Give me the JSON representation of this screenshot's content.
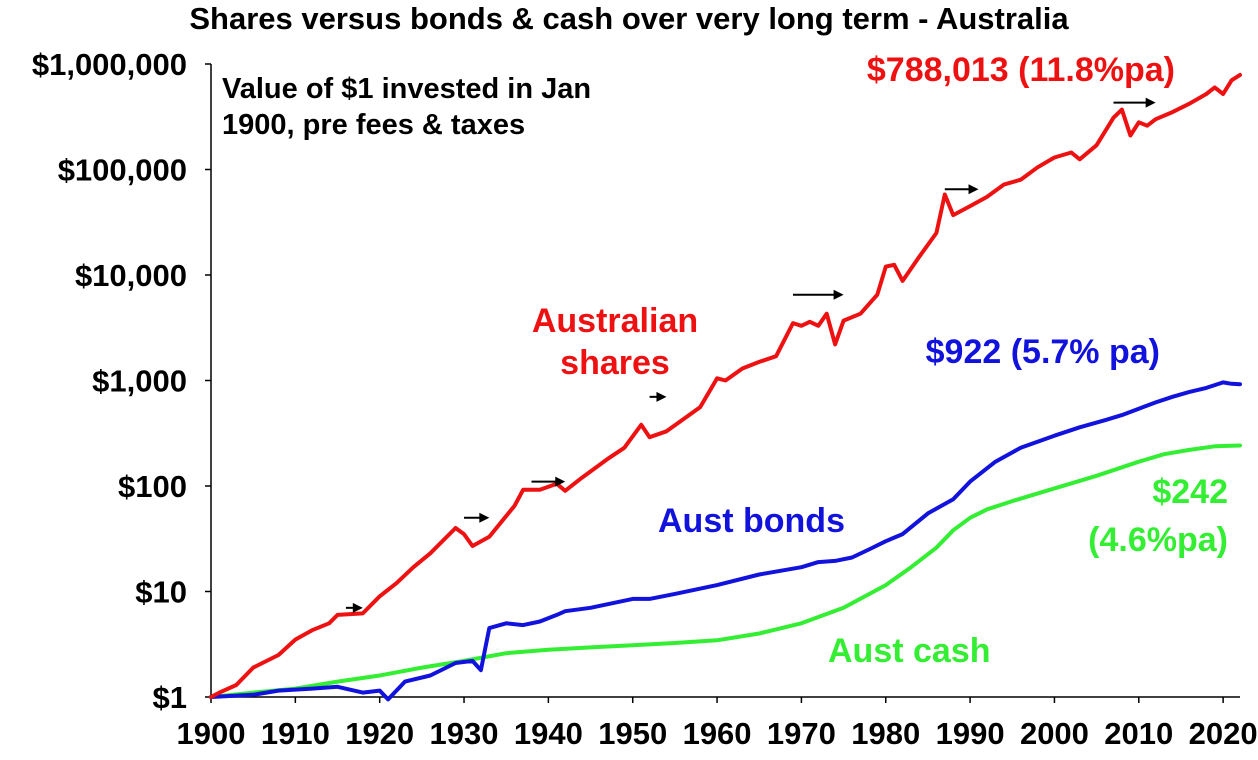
{
  "chart_data": {
    "type": "line",
    "title": "Shares versus bonds & cash over very long term - Australia",
    "y_scale": "log",
    "ylim": [
      1,
      1000000
    ],
    "xlim": [
      1900,
      2022
    ],
    "y_ticks": [
      {
        "value": 1,
        "label": "$1"
      },
      {
        "value": 10,
        "label": "$10"
      },
      {
        "value": 100,
        "label": "$100"
      },
      {
        "value": 1000,
        "label": "$1,000"
      },
      {
        "value": 10000,
        "label": "$10,000"
      },
      {
        "value": 100000,
        "label": "$100,000"
      },
      {
        "value": 1000000,
        "label": "$1,000,000"
      }
    ],
    "x_ticks": [
      {
        "value": 1900,
        "label": "1900"
      },
      {
        "value": 1910,
        "label": "1910"
      },
      {
        "value": 1920,
        "label": "1920"
      },
      {
        "value": 1930,
        "label": "1930"
      },
      {
        "value": 1940,
        "label": "1940"
      },
      {
        "value": 1950,
        "label": "1950"
      },
      {
        "value": 1960,
        "label": "1960"
      },
      {
        "value": 1970,
        "label": "1970"
      },
      {
        "value": 1980,
        "label": "1980"
      },
      {
        "value": 1990,
        "label": "1990"
      },
      {
        "value": 2000,
        "label": "2000"
      },
      {
        "value": 2010,
        "label": "2010"
      },
      {
        "value": 2020,
        "label": "2020"
      }
    ],
    "note": [
      "Value of $1 invested in Jan",
      "1900, pre fees & taxes"
    ],
    "series": [
      {
        "name": "Australian shares",
        "color": "#ee1111",
        "label_lines": [
          "Australian",
          "shares"
        ],
        "end_label": [
          "$788,013 (11.8%pa)"
        ],
        "points": [
          [
            1900,
            1.0
          ],
          [
            1901,
            1.1
          ],
          [
            1903,
            1.3
          ],
          [
            1905,
            1.9
          ],
          [
            1908,
            2.5
          ],
          [
            1910,
            3.5
          ],
          [
            1912,
            4.3
          ],
          [
            1914,
            5.0
          ],
          [
            1915,
            6.0
          ],
          [
            1918,
            6.2
          ],
          [
            1920,
            9.0
          ],
          [
            1922,
            12
          ],
          [
            1924,
            17
          ],
          [
            1926,
            23
          ],
          [
            1929,
            40
          ],
          [
            1930,
            35
          ],
          [
            1931,
            27
          ],
          [
            1933,
            33
          ],
          [
            1936,
            65
          ],
          [
            1937,
            92
          ],
          [
            1939,
            92
          ],
          [
            1941,
            105
          ],
          [
            1942,
            90
          ],
          [
            1944,
            120
          ],
          [
            1947,
            180
          ],
          [
            1949,
            230
          ],
          [
            1951,
            380
          ],
          [
            1952,
            290
          ],
          [
            1954,
            330
          ],
          [
            1956,
            430
          ],
          [
            1958,
            560
          ],
          [
            1960,
            1050
          ],
          [
            1961,
            1000
          ],
          [
            1963,
            1300
          ],
          [
            1965,
            1500
          ],
          [
            1967,
            1700
          ],
          [
            1969,
            3500
          ],
          [
            1970,
            3300
          ],
          [
            1971,
            3600
          ],
          [
            1972,
            3300
          ],
          [
            1973,
            4300
          ],
          [
            1974,
            2200
          ],
          [
            1975,
            3700
          ],
          [
            1977,
            4300
          ],
          [
            1979,
            6500
          ],
          [
            1980,
            12000
          ],
          [
            1981,
            12500
          ],
          [
            1982,
            8800
          ],
          [
            1984,
            15000
          ],
          [
            1986,
            25000
          ],
          [
            1987,
            58000
          ],
          [
            1988,
            37000
          ],
          [
            1990,
            45000
          ],
          [
            1992,
            55000
          ],
          [
            1994,
            72000
          ],
          [
            1996,
            80000
          ],
          [
            1998,
            105000
          ],
          [
            2000,
            130000
          ],
          [
            2002,
            145000
          ],
          [
            2003,
            125000
          ],
          [
            2005,
            170000
          ],
          [
            2007,
            310000
          ],
          [
            2008,
            370000
          ],
          [
            2009,
            210000
          ],
          [
            2010,
            280000
          ],
          [
            2011,
            260000
          ],
          [
            2012,
            300000
          ],
          [
            2014,
            350000
          ],
          [
            2016,
            420000
          ],
          [
            2018,
            520000
          ],
          [
            2019,
            600000
          ],
          [
            2020,
            520000
          ],
          [
            2021,
            700000
          ],
          [
            2022,
            788013
          ]
        ]
      },
      {
        "name": "Aust bonds",
        "color": "#1212dd",
        "label_lines": [
          "Aust bonds"
        ],
        "end_label": [
          "$922 (5.7% pa)"
        ],
        "points": [
          [
            1900,
            1.0
          ],
          [
            1905,
            1.05
          ],
          [
            1908,
            1.15
          ],
          [
            1912,
            1.2
          ],
          [
            1915,
            1.25
          ],
          [
            1918,
            1.1
          ],
          [
            1920,
            1.15
          ],
          [
            1921,
            0.95
          ],
          [
            1923,
            1.4
          ],
          [
            1926,
            1.6
          ],
          [
            1929,
            2.1
          ],
          [
            1931,
            2.2
          ],
          [
            1932,
            1.8
          ],
          [
            1933,
            4.5
          ],
          [
            1935,
            5.0
          ],
          [
            1937,
            4.8
          ],
          [
            1939,
            5.2
          ],
          [
            1941,
            6.0
          ],
          [
            1942,
            6.5
          ],
          [
            1945,
            7.0
          ],
          [
            1950,
            8.5
          ],
          [
            1952,
            8.5
          ],
          [
            1955,
            9.5
          ],
          [
            1960,
            11.5
          ],
          [
            1965,
            14.5
          ],
          [
            1970,
            17
          ],
          [
            1972,
            19
          ],
          [
            1974,
            19.5
          ],
          [
            1976,
            21
          ],
          [
            1978,
            25
          ],
          [
            1980,
            30
          ],
          [
            1982,
            35
          ],
          [
            1985,
            55
          ],
          [
            1988,
            75
          ],
          [
            1990,
            110
          ],
          [
            1993,
            170
          ],
          [
            1996,
            230
          ],
          [
            2000,
            300
          ],
          [
            2003,
            360
          ],
          [
            2006,
            420
          ],
          [
            2008,
            470
          ],
          [
            2010,
            540
          ],
          [
            2012,
            620
          ],
          [
            2014,
            700
          ],
          [
            2016,
            780
          ],
          [
            2018,
            850
          ],
          [
            2020,
            960
          ],
          [
            2021,
            930
          ],
          [
            2022,
            922
          ]
        ]
      },
      {
        "name": "Aust cash",
        "color": "#33ee33",
        "label_lines": [
          "Aust cash"
        ],
        "end_label": [
          "$242",
          "(4.6%pa)"
        ],
        "points": [
          [
            1900,
            1.0
          ],
          [
            1905,
            1.1
          ],
          [
            1910,
            1.2
          ],
          [
            1915,
            1.4
          ],
          [
            1920,
            1.6
          ],
          [
            1925,
            1.9
          ],
          [
            1930,
            2.2
          ],
          [
            1935,
            2.6
          ],
          [
            1940,
            2.8
          ],
          [
            1945,
            2.95
          ],
          [
            1950,
            3.1
          ],
          [
            1955,
            3.25
          ],
          [
            1960,
            3.45
          ],
          [
            1965,
            4.0
          ],
          [
            1970,
            5.0
          ],
          [
            1975,
            7.0
          ],
          [
            1980,
            11.5
          ],
          [
            1983,
            17
          ],
          [
            1986,
            26
          ],
          [
            1988,
            38
          ],
          [
            1990,
            50
          ],
          [
            1992,
            60
          ],
          [
            1995,
            72
          ],
          [
            2000,
            95
          ],
          [
            2005,
            125
          ],
          [
            2010,
            170
          ],
          [
            2013,
            200
          ],
          [
            2016,
            220
          ],
          [
            2019,
            238
          ],
          [
            2022,
            242
          ]
        ]
      }
    ],
    "arrows": [
      {
        "x": [
          1916,
          1918
        ],
        "y": 7
      },
      {
        "x": [
          1930,
          1933
        ],
        "y": 50
      },
      {
        "x": [
          1938,
          1942
        ],
        "y": 110
      },
      {
        "x": [
          1952,
          1954
        ],
        "y": 700
      },
      {
        "x": [
          1969,
          1975
        ],
        "y": 6500
      },
      {
        "x": [
          1987,
          1991
        ],
        "y": 65000
      },
      {
        "x": [
          2007,
          2012
        ],
        "y": 430000
      }
    ]
  }
}
